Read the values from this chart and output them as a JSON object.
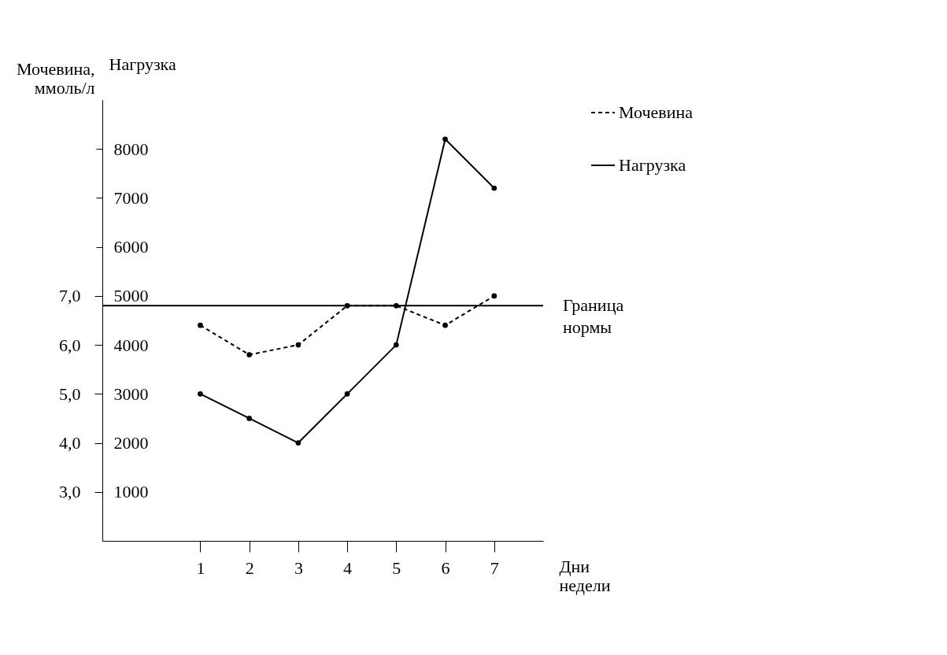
{
  "chart_data": {
    "type": "line",
    "xlabel": "Дни недели",
    "ylabel": "Мочевина, ммоль/л",
    "y2label": "Нагрузка",
    "x": [
      1,
      2,
      3,
      4,
      5,
      6,
      7
    ],
    "xlim": [
      -1,
      8
    ],
    "xticks": [
      1,
      2,
      3,
      4,
      5,
      6,
      7
    ],
    "ylim": [
      2,
      11
    ],
    "yticks": [
      {
        "value": 3,
        "label": "3,0"
      },
      {
        "value": 4,
        "label": "4,0"
      },
      {
        "value": 5,
        "label": "5,0"
      },
      {
        "value": 6,
        "label": "6,0"
      },
      {
        "value": 7,
        "label": "7,0"
      }
    ],
    "y2lim": [
      0,
      9000
    ],
    "y2ticks": [
      1000,
      2000,
      3000,
      4000,
      5000,
      6000,
      7000,
      8000
    ],
    "series": [
      {
        "name": "Мочевина",
        "color": "#000000",
        "line_style": "dashed",
        "values": [
          6.4,
          5.8,
          6.0,
          6.8,
          6.8,
          6.4,
          7.0
        ]
      },
      {
        "name": "Нагрузка",
        "color": "#000000",
        "axis": "y2",
        "line_style": "solid",
        "values": [
          3000,
          2500,
          2000,
          3000,
          4000,
          8200,
          7200
        ]
      }
    ],
    "ref_lines": [
      {
        "axis": "y",
        "value": 6.8,
        "label": "Граница нормы"
      }
    ],
    "marker": "circle",
    "grid": false,
    "legend": "right"
  }
}
